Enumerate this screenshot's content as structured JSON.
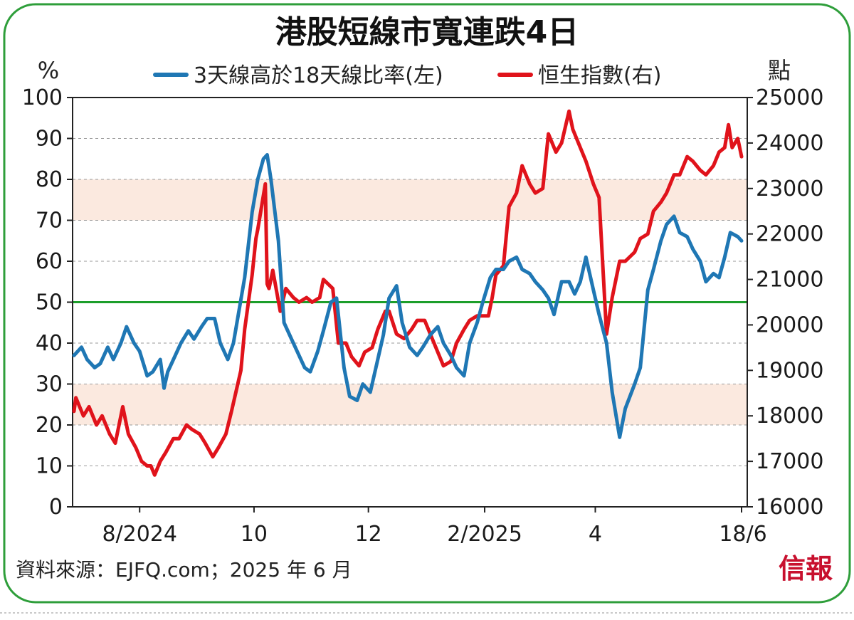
{
  "colors": {
    "frame": "#2e9e3a",
    "ratio_series": "#1f77b4",
    "hsi_series": "#e0131b",
    "band": "#fbe9df",
    "threshold_line": "#1c9e2a",
    "grid": "#9a9a9a",
    "logo": "#c8102e"
  },
  "footer": {
    "source": "資料來源：EJFQ.com；2025 年 6 月",
    "logo": "信報"
  },
  "chart_data": {
    "type": "line",
    "title": "港股短線市寬連跌4日",
    "ylabel_left": "%",
    "ylabel_right": "點",
    "ylim_left": [
      0,
      100
    ],
    "ylim_right": [
      16000,
      25000
    ],
    "yticks_left": [
      "0",
      "10",
      "20",
      "30",
      "40",
      "50",
      "60",
      "70",
      "80",
      "90",
      "100"
    ],
    "yticks_right": [
      "16000",
      "17000",
      "18000",
      "19000",
      "20000",
      "21000",
      "22000",
      "23000",
      "24000",
      "25000"
    ],
    "xrange": [
      "2024-06-27",
      "2025-06-18"
    ],
    "xticks": [
      {
        "date": "2024-08-01",
        "label": "8/2024"
      },
      {
        "date": "2024-10-01",
        "label": "10"
      },
      {
        "date": "2024-12-01",
        "label": "12"
      },
      {
        "date": "2025-02-01",
        "label": "2/2025"
      },
      {
        "date": "2025-04-01",
        "label": "4"
      },
      {
        "date": "2025-06-18",
        "label": "18/6"
      }
    ],
    "grid": true,
    "legend": "top",
    "bands_left": [
      [
        20,
        30
      ],
      [
        70,
        80
      ]
    ],
    "reference_line_left": 50,
    "series": [
      {
        "name": "3天線高於18天線比率(左)",
        "axis": "left",
        "points": [
          [
            "2024-06-27",
            37
          ],
          [
            "2024-07-01",
            39
          ],
          [
            "2024-07-04",
            36
          ],
          [
            "2024-07-08",
            34
          ],
          [
            "2024-07-11",
            35
          ],
          [
            "2024-07-15",
            39
          ],
          [
            "2024-07-18",
            36
          ],
          [
            "2024-07-22",
            40
          ],
          [
            "2024-07-25",
            44
          ],
          [
            "2024-07-29",
            40
          ],
          [
            "2024-08-01",
            38
          ],
          [
            "2024-08-05",
            32
          ],
          [
            "2024-08-08",
            33
          ],
          [
            "2024-08-12",
            36
          ],
          [
            "2024-08-14",
            29
          ],
          [
            "2024-08-16",
            33
          ],
          [
            "2024-08-20",
            37
          ],
          [
            "2024-08-23",
            40
          ],
          [
            "2024-08-27",
            43
          ],
          [
            "2024-08-30",
            41
          ],
          [
            "2024-09-03",
            44
          ],
          [
            "2024-09-06",
            46
          ],
          [
            "2024-09-10",
            46
          ],
          [
            "2024-09-13",
            40
          ],
          [
            "2024-09-17",
            36
          ],
          [
            "2024-09-20",
            40
          ],
          [
            "2024-09-23",
            48
          ],
          [
            "2024-09-26",
            56
          ],
          [
            "2024-09-30",
            72
          ],
          [
            "2024-10-03",
            80
          ],
          [
            "2024-10-06",
            85
          ],
          [
            "2024-10-08",
            86
          ],
          [
            "2024-10-10",
            80
          ],
          [
            "2024-10-14",
            65
          ],
          [
            "2024-10-17",
            45
          ],
          [
            "2024-10-21",
            41
          ],
          [
            "2024-10-24",
            38
          ],
          [
            "2024-10-28",
            34
          ],
          [
            "2024-10-31",
            33
          ],
          [
            "2024-11-04",
            38
          ],
          [
            "2024-11-07",
            43
          ],
          [
            "2024-11-11",
            50
          ],
          [
            "2024-11-14",
            51
          ],
          [
            "2024-11-18",
            34
          ],
          [
            "2024-11-21",
            27
          ],
          [
            "2024-11-25",
            26
          ],
          [
            "2024-11-28",
            30
          ],
          [
            "2024-12-02",
            28
          ],
          [
            "2024-12-05",
            34
          ],
          [
            "2024-12-09",
            42
          ],
          [
            "2024-12-12",
            51
          ],
          [
            "2024-12-16",
            54
          ],
          [
            "2024-12-19",
            45
          ],
          [
            "2024-12-23",
            39
          ],
          [
            "2024-12-27",
            37
          ],
          [
            "2024-12-30",
            39
          ],
          [
            "2025-01-03",
            42
          ],
          [
            "2025-01-07",
            44
          ],
          [
            "2025-01-10",
            40
          ],
          [
            "2025-01-14",
            37
          ],
          [
            "2025-01-17",
            34
          ],
          [
            "2025-01-21",
            32
          ],
          [
            "2025-01-24",
            40
          ],
          [
            "2025-01-28",
            45
          ],
          [
            "2025-01-31",
            50
          ],
          [
            "2025-02-04",
            56
          ],
          [
            "2025-02-07",
            58
          ],
          [
            "2025-02-11",
            58
          ],
          [
            "2025-02-14",
            60
          ],
          [
            "2025-02-18",
            61
          ],
          [
            "2025-02-21",
            58
          ],
          [
            "2025-02-25",
            57
          ],
          [
            "2025-02-28",
            55
          ],
          [
            "2025-03-04",
            53
          ],
          [
            "2025-03-07",
            51
          ],
          [
            "2025-03-10",
            47
          ],
          [
            "2025-03-14",
            55
          ],
          [
            "2025-03-18",
            55
          ],
          [
            "2025-03-21",
            52
          ],
          [
            "2025-03-24",
            55
          ],
          [
            "2025-03-27",
            61
          ],
          [
            "2025-03-31",
            53
          ],
          [
            "2025-04-03",
            47
          ],
          [
            "2025-04-07",
            40
          ],
          [
            "2025-04-10",
            28
          ],
          [
            "2025-04-14",
            17
          ],
          [
            "2025-04-17",
            24
          ],
          [
            "2025-04-22",
            30
          ],
          [
            "2025-04-25",
            34
          ],
          [
            "2025-04-29",
            53
          ],
          [
            "2025-05-02",
            58
          ],
          [
            "2025-05-06",
            65
          ],
          [
            "2025-05-09",
            69
          ],
          [
            "2025-05-13",
            71
          ],
          [
            "2025-05-16",
            67
          ],
          [
            "2025-05-20",
            66
          ],
          [
            "2025-05-23",
            63
          ],
          [
            "2025-05-27",
            60
          ],
          [
            "2025-05-30",
            55
          ],
          [
            "2025-06-03",
            57
          ],
          [
            "2025-06-06",
            56
          ],
          [
            "2025-06-09",
            61
          ],
          [
            "2025-06-12",
            67
          ],
          [
            "2025-06-16",
            66
          ],
          [
            "2025-06-18",
            65
          ]
        ]
      },
      {
        "name": "恒生指數(右)",
        "axis": "right",
        "points": [
          [
            "2024-06-27",
            18100
          ],
          [
            "2024-06-28",
            18400
          ],
          [
            "2024-07-02",
            18000
          ],
          [
            "2024-07-05",
            18200
          ],
          [
            "2024-07-09",
            17800
          ],
          [
            "2024-07-12",
            18000
          ],
          [
            "2024-07-16",
            17600
          ],
          [
            "2024-07-19",
            17400
          ],
          [
            "2024-07-23",
            18200
          ],
          [
            "2024-07-26",
            17600
          ],
          [
            "2024-07-30",
            17300
          ],
          [
            "2024-08-02",
            17000
          ],
          [
            "2024-08-05",
            16900
          ],
          [
            "2024-08-07",
            16900
          ],
          [
            "2024-08-09",
            16700
          ],
          [
            "2024-08-12",
            17000
          ],
          [
            "2024-08-15",
            17200
          ],
          [
            "2024-08-19",
            17500
          ],
          [
            "2024-08-22",
            17500
          ],
          [
            "2024-08-26",
            17800
          ],
          [
            "2024-08-29",
            17700
          ],
          [
            "2024-09-02",
            17600
          ],
          [
            "2024-09-05",
            17400
          ],
          [
            "2024-09-09",
            17100
          ],
          [
            "2024-09-12",
            17300
          ],
          [
            "2024-09-16",
            17600
          ],
          [
            "2024-09-19",
            18100
          ],
          [
            "2024-09-24",
            19000
          ],
          [
            "2024-09-26",
            19900
          ],
          [
            "2024-09-30",
            21100
          ],
          [
            "2024-10-02",
            21900
          ],
          [
            "2024-10-03",
            22100
          ],
          [
            "2024-10-07",
            23100
          ],
          [
            "2024-10-08",
            20900
          ],
          [
            "2024-10-09",
            20800
          ],
          [
            "2024-10-11",
            21200
          ],
          [
            "2024-10-15",
            20300
          ],
          [
            "2024-10-18",
            20800
          ],
          [
            "2024-10-22",
            20600
          ],
          [
            "2024-10-25",
            20500
          ],
          [
            "2024-10-29",
            20600
          ],
          [
            "2024-11-01",
            20500
          ],
          [
            "2024-11-05",
            20600
          ],
          [
            "2024-11-07",
            21000
          ],
          [
            "2024-11-12",
            20800
          ],
          [
            "2024-11-15",
            19600
          ],
          [
            "2024-11-19",
            19600
          ],
          [
            "2024-11-22",
            19300
          ],
          [
            "2024-11-26",
            19100
          ],
          [
            "2024-11-29",
            19400
          ],
          [
            "2024-12-03",
            19500
          ],
          [
            "2024-12-06",
            19900
          ],
          [
            "2024-12-10",
            20300
          ],
          [
            "2024-12-12",
            20300
          ],
          [
            "2024-12-16",
            19800
          ],
          [
            "2024-12-20",
            19700
          ],
          [
            "2024-12-24",
            19900
          ],
          [
            "2024-12-27",
            20100
          ],
          [
            "2024-12-31",
            20100
          ],
          [
            "2025-01-03",
            19800
          ],
          [
            "2025-01-07",
            19400
          ],
          [
            "2025-01-10",
            19100
          ],
          [
            "2025-01-14",
            19200
          ],
          [
            "2025-01-17",
            19600
          ],
          [
            "2025-01-21",
            19900
          ],
          [
            "2025-01-24",
            20100
          ],
          [
            "2025-01-28",
            20200
          ],
          [
            "2025-02-03",
            20200
          ],
          [
            "2025-02-05",
            20600
          ],
          [
            "2025-02-07",
            21100
          ],
          [
            "2025-02-11",
            21300
          ],
          [
            "2025-02-14",
            22600
          ],
          [
            "2025-02-18",
            22900
          ],
          [
            "2025-02-21",
            23500
          ],
          [
            "2025-02-25",
            23100
          ],
          [
            "2025-02-28",
            22900
          ],
          [
            "2025-03-04",
            23000
          ],
          [
            "2025-03-07",
            24200
          ],
          [
            "2025-03-11",
            23800
          ],
          [
            "2025-03-14",
            24000
          ],
          [
            "2025-03-18",
            24700
          ],
          [
            "2025-03-20",
            24300
          ],
          [
            "2025-03-24",
            23900
          ],
          [
            "2025-03-27",
            23600
          ],
          [
            "2025-03-31",
            23100
          ],
          [
            "2025-04-03",
            22800
          ],
          [
            "2025-04-07",
            19800
          ],
          [
            "2025-04-10",
            20600
          ],
          [
            "2025-04-14",
            21400
          ],
          [
            "2025-04-17",
            21400
          ],
          [
            "2025-04-22",
            21600
          ],
          [
            "2025-04-25",
            21900
          ],
          [
            "2025-04-29",
            22000
          ],
          [
            "2025-05-02",
            22500
          ],
          [
            "2025-05-06",
            22700
          ],
          [
            "2025-05-09",
            22900
          ],
          [
            "2025-05-13",
            23300
          ],
          [
            "2025-05-16",
            23300
          ],
          [
            "2025-05-20",
            23700
          ],
          [
            "2025-05-23",
            23600
          ],
          [
            "2025-05-27",
            23400
          ],
          [
            "2025-05-30",
            23300
          ],
          [
            "2025-06-03",
            23500
          ],
          [
            "2025-06-06",
            23800
          ],
          [
            "2025-06-09",
            23900
          ],
          [
            "2025-06-11",
            24400
          ],
          [
            "2025-06-13",
            23900
          ],
          [
            "2025-06-16",
            24100
          ],
          [
            "2025-06-18",
            23700
          ]
        ]
      }
    ]
  }
}
